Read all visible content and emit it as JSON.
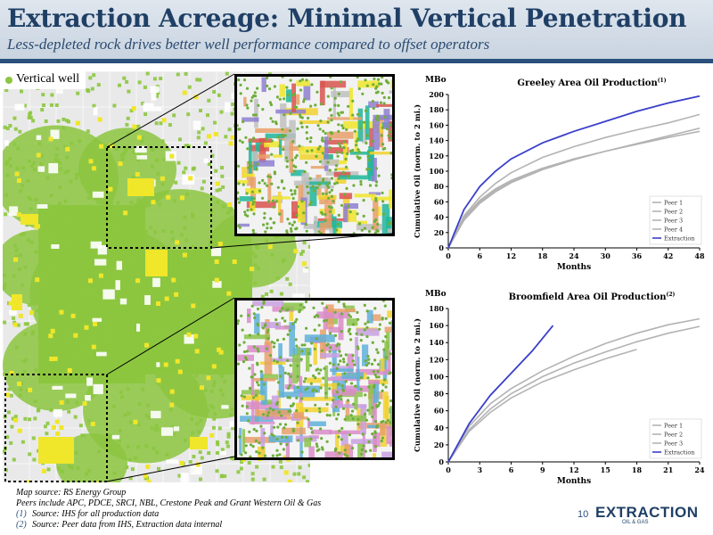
{
  "header": {
    "title": "Extraction Acreage: Minimal Vertical Penetration",
    "subtitle": "Less-depleted rock drives better well performance compared to offset operators"
  },
  "map": {
    "legend_label": "Vertical well",
    "legend_color": "#8cc63f",
    "well_color": "#8cc63f",
    "acreage_color": "#f0e62a"
  },
  "colors": {
    "brand": "#1f3f66",
    "header_rule": "#2a4f7d",
    "peer_line": "#b3b3b3",
    "extraction_line": "#3a3fc9"
  },
  "chart_data": [
    {
      "type": "line",
      "title": "Greeley Area Oil Production",
      "title_superscript": "(1)",
      "unit_label": "MBo",
      "xlabel": "Months",
      "ylabel": "Cumulative Oil (norm. to 2 mi.)",
      "xlim": [
        0,
        48
      ],
      "ylim": [
        0,
        200
      ],
      "xticks": [
        0,
        6,
        12,
        18,
        24,
        30,
        36,
        42,
        48
      ],
      "yticks": [
        0,
        20,
        40,
        60,
        80,
        100,
        120,
        140,
        160,
        180,
        200
      ],
      "grid": false,
      "legend_position": "bottom-right",
      "series": [
        {
          "name": "Peer 1",
          "color": "#b3b3b3",
          "x": [
            0,
            3,
            6,
            9,
            12,
            18,
            24,
            30,
            36,
            42,
            48
          ],
          "y": [
            0,
            38,
            60,
            75,
            87,
            104,
            116,
            126,
            135,
            144,
            152
          ]
        },
        {
          "name": "Peer 2",
          "color": "#b3b3b3",
          "x": [
            0,
            3,
            6,
            9,
            12,
            18,
            24,
            30,
            36,
            42,
            48
          ],
          "y": [
            0,
            42,
            66,
            84,
            98,
            118,
            132,
            144,
            154,
            163,
            174
          ]
        },
        {
          "name": "Peer 3",
          "color": "#b3b3b3",
          "x": [
            0,
            3,
            6,
            9,
            12,
            18,
            24,
            30,
            36,
            42,
            48
          ],
          "y": [
            0,
            36,
            58,
            73,
            85,
            102,
            115,
            126,
            136,
            146,
            156
          ]
        },
        {
          "name": "Peer 4",
          "color": "#b3b3b3",
          "x": [
            0,
            3,
            6,
            9,
            12,
            15,
            18
          ],
          "y": [
            0,
            40,
            62,
            77,
            88,
            96,
            104
          ]
        },
        {
          "name": "Extraction",
          "color": "#3a3fc9",
          "x": [
            0,
            3,
            6,
            9,
            12,
            18,
            24,
            30,
            36,
            42,
            48
          ],
          "y": [
            0,
            50,
            80,
            100,
            116,
            137,
            152,
            165,
            178,
            189,
            198
          ]
        }
      ]
    },
    {
      "type": "line",
      "title": "Broomfield Area Oil Production",
      "title_superscript": "(2)",
      "unit_label": "MBo",
      "xlabel": "Months",
      "ylabel": "Cumulative Oil (norm. to 2 mi.)",
      "xlim": [
        0,
        24
      ],
      "ylim": [
        0,
        180
      ],
      "xticks": [
        0,
        3,
        6,
        9,
        12,
        15,
        18,
        21,
        24
      ],
      "yticks": [
        0,
        20,
        40,
        60,
        80,
        100,
        120,
        140,
        160,
        180
      ],
      "grid": false,
      "legend_position": "bottom-right",
      "series": [
        {
          "name": "Peer 1",
          "color": "#b3b3b3",
          "x": [
            0,
            2,
            4,
            6,
            9,
            12,
            15,
            18,
            21,
            24
          ],
          "y": [
            0,
            38,
            62,
            80,
            100,
            116,
            129,
            141,
            151,
            159
          ]
        },
        {
          "name": "Peer 2",
          "color": "#b3b3b3",
          "x": [
            0,
            2,
            4,
            6,
            9,
            12,
            15,
            18,
            21,
            24
          ],
          "y": [
            0,
            42,
            68,
            86,
            107,
            124,
            139,
            151,
            161,
            168
          ]
        },
        {
          "name": "Peer 3",
          "color": "#b3b3b3",
          "x": [
            0,
            2,
            4,
            6,
            9,
            12,
            15,
            18
          ],
          "y": [
            0,
            36,
            58,
            75,
            94,
            108,
            121,
            132
          ]
        },
        {
          "name": "Extraction",
          "color": "#3a3fc9",
          "x": [
            0,
            2,
            4,
            6,
            8,
            10
          ],
          "y": [
            0,
            45,
            78,
            104,
            130,
            160
          ]
        }
      ]
    }
  ],
  "footnotes": {
    "source": "Map source: RS Energy Group",
    "peers": "Peers include APC, PDCE, SRCI, NBL, Crestone Peak and Grant Western Oil & Gas",
    "note1_num": "(1)",
    "note1_text": "Source: IHS for all production data",
    "note2_num": "(2)",
    "note2_text": "Source: Peer data from IHS, Extraction data internal"
  },
  "page_number": "10",
  "logo": {
    "name": "EXTRACTION",
    "tagline": "OIL & GAS"
  }
}
